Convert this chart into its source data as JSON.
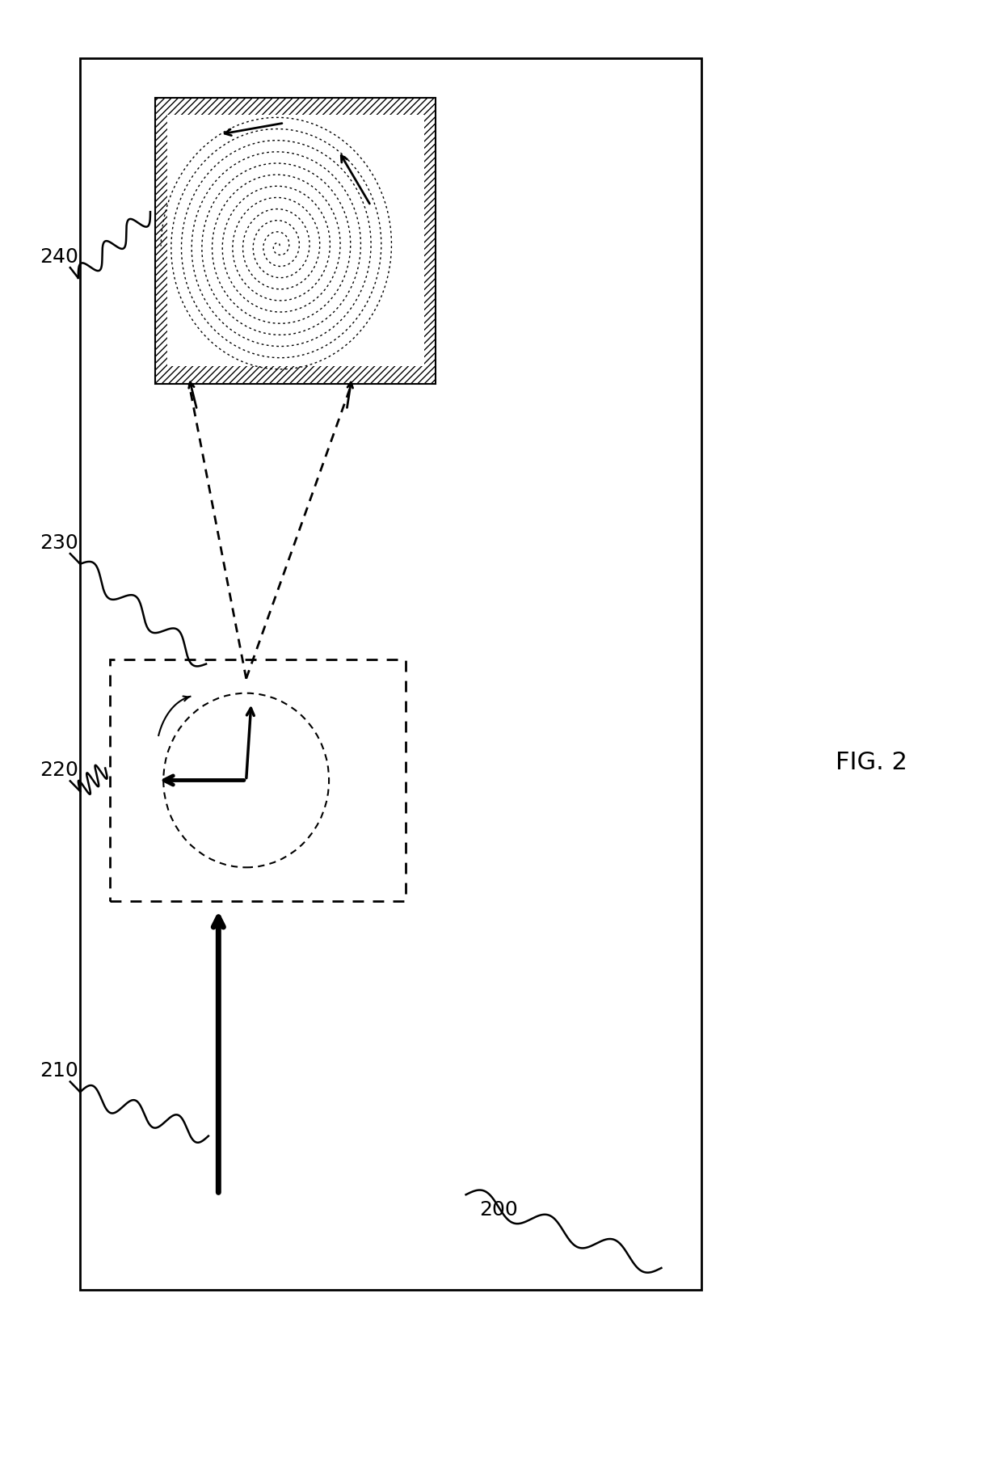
{
  "fig_width": 12.4,
  "fig_height": 18.15,
  "bg_color": "#ffffff",
  "label_200": "200",
  "label_210": "210",
  "label_220": "220",
  "label_230": "230",
  "label_240": "240",
  "fig_label": "FIG. 2"
}
